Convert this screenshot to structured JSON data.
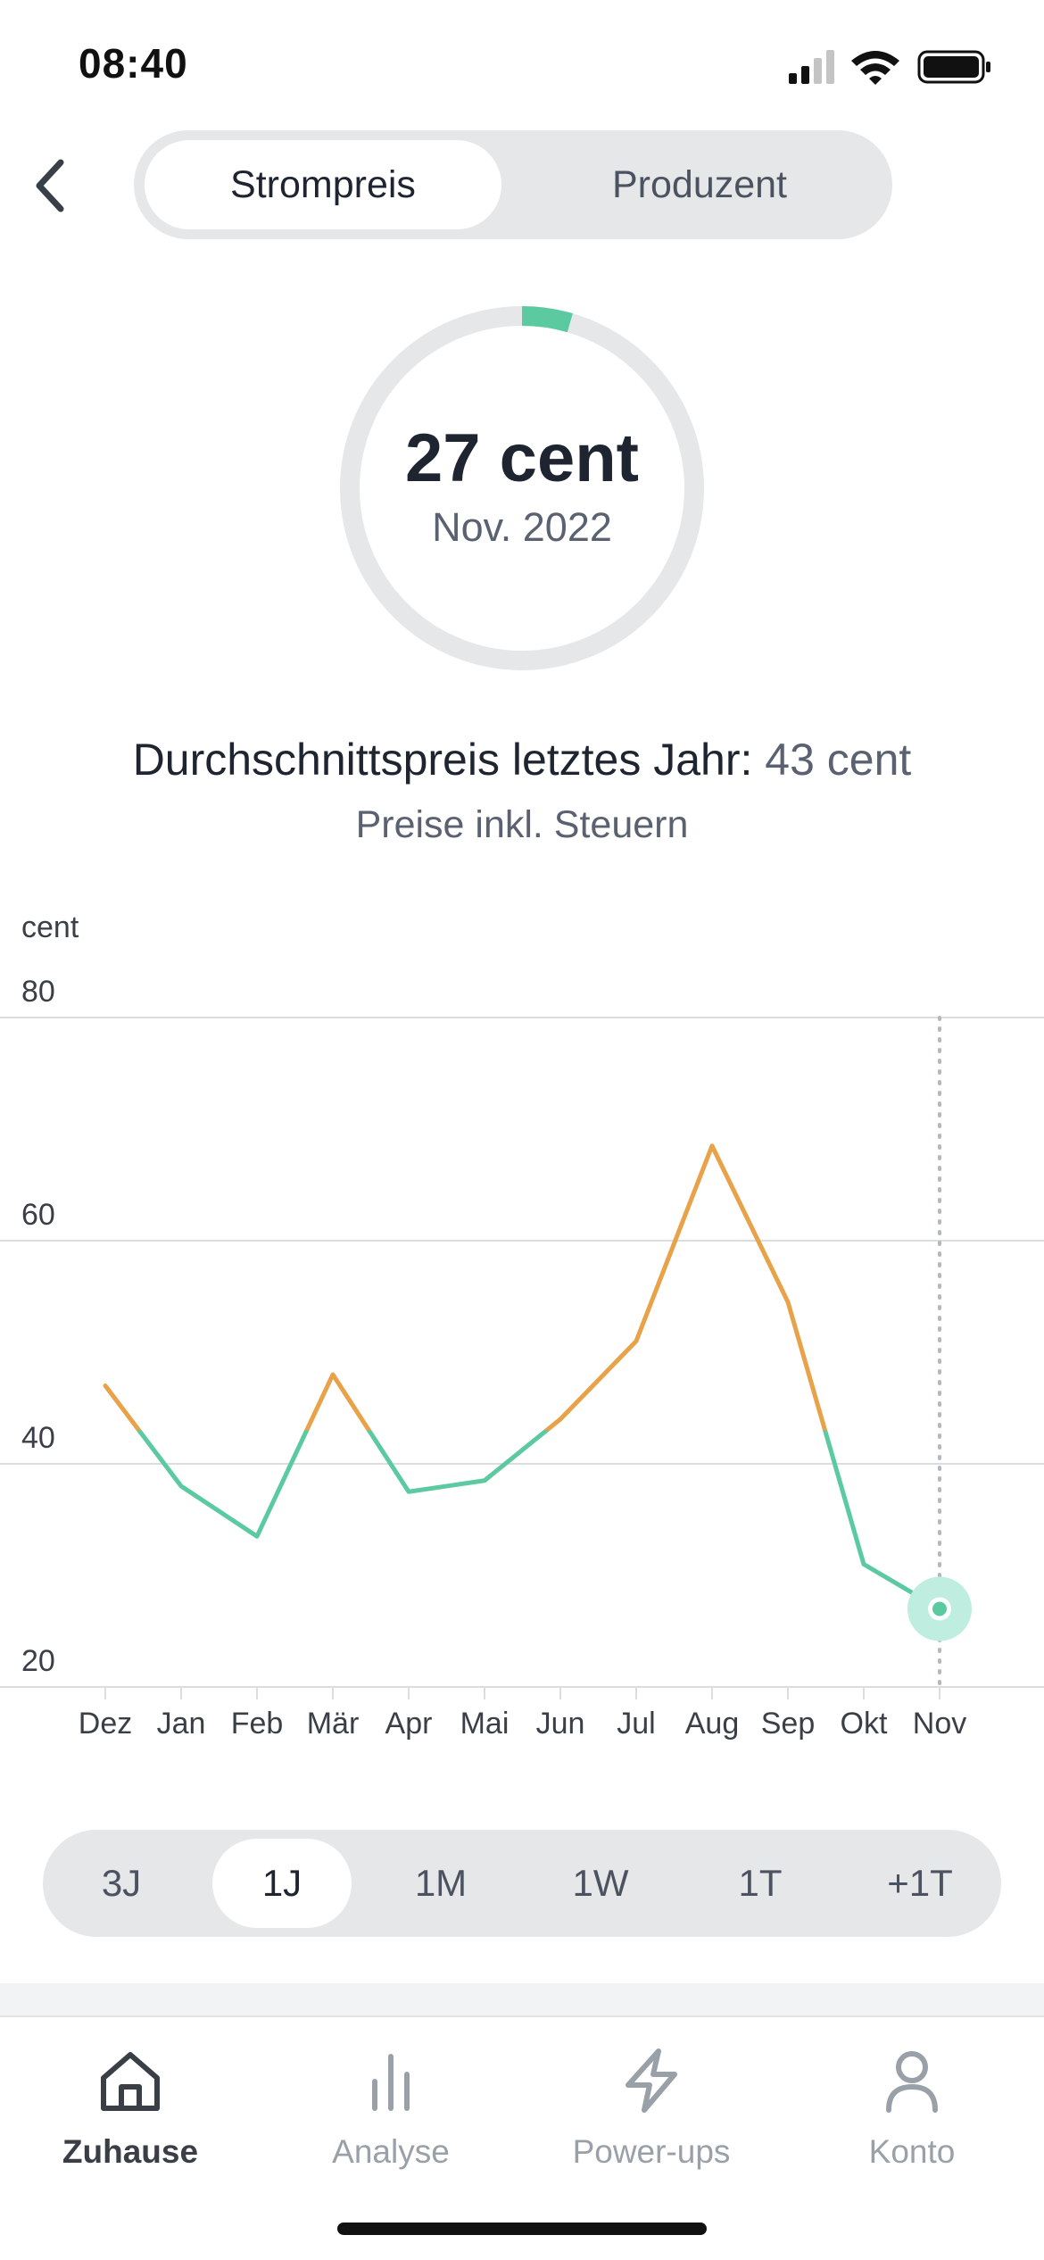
{
  "status_bar": {
    "time": "08:40"
  },
  "header": {
    "segments": [
      {
        "label": "Strompreis",
        "active": true
      },
      {
        "label": "Produzent",
        "active": false
      }
    ]
  },
  "gauge": {
    "value": "27 cent",
    "date": "Nov. 2022",
    "accent": "#5ccaa1",
    "track": "#e6e7e9",
    "fill_fraction": 0.045
  },
  "summary": {
    "avg_label": "Durchschnittspreis letztes Jahr:",
    "avg_value": "43 cent",
    "tax_note": "Preise inkl. Steuern"
  },
  "chart_data": {
    "type": "line",
    "ylabel": "cent",
    "ylim": [
      20,
      80
    ],
    "yticks": [
      80,
      60,
      40,
      20
    ],
    "categories": [
      "Dez",
      "Jan",
      "Feb",
      "Mär",
      "Apr",
      "Mai",
      "Jun",
      "Jul",
      "Aug",
      "Sep",
      "Okt",
      "Nov"
    ],
    "series": [
      {
        "values": [
          47,
          38,
          33.5,
          48,
          37.5,
          38.5,
          44,
          51,
          68.5,
          54.5,
          31,
          27
        ]
      }
    ],
    "threshold": 43,
    "color_below": "#5ccaa1",
    "color_above": "#e8a24a",
    "highlight_category": "Nov",
    "grid": true
  },
  "range_selector": {
    "items": [
      {
        "label": "3J",
        "active": false
      },
      {
        "label": "1J",
        "active": true
      },
      {
        "label": "1M",
        "active": false
      },
      {
        "label": "1W",
        "active": false
      },
      {
        "label": "1T",
        "active": false
      },
      {
        "label": "+1T",
        "active": false
      }
    ]
  },
  "tab_bar": {
    "tabs": [
      {
        "label": "Zuhause",
        "icon": "home-icon",
        "active": true
      },
      {
        "label": "Analyse",
        "icon": "bar-chart-icon",
        "active": false
      },
      {
        "label": "Power-ups",
        "icon": "lightning-icon",
        "active": false
      },
      {
        "label": "Konto",
        "icon": "person-icon",
        "active": false
      }
    ]
  }
}
